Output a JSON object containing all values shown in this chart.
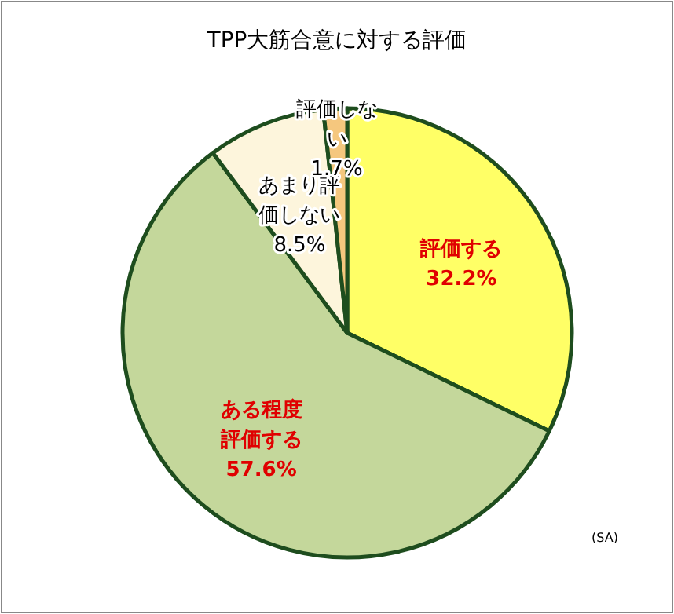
{
  "chart_data": {
    "type": "pie",
    "title": "TPP大筋合意に対する評価",
    "categories": [
      "評価する",
      "ある程度評価する",
      "あまり評価しない",
      "評価しない"
    ],
    "values": [
      32.2,
      57.6,
      8.5,
      1.7
    ],
    "colors": [
      "#ffff66",
      "#c4d79b",
      "#fdf5dc",
      "#f5c77e"
    ],
    "data_labels": true,
    "value_labels": [
      "32.2%",
      "57.6%",
      "8.5%",
      "1.7%"
    ],
    "annotations": [
      "(SA)"
    ]
  }
}
